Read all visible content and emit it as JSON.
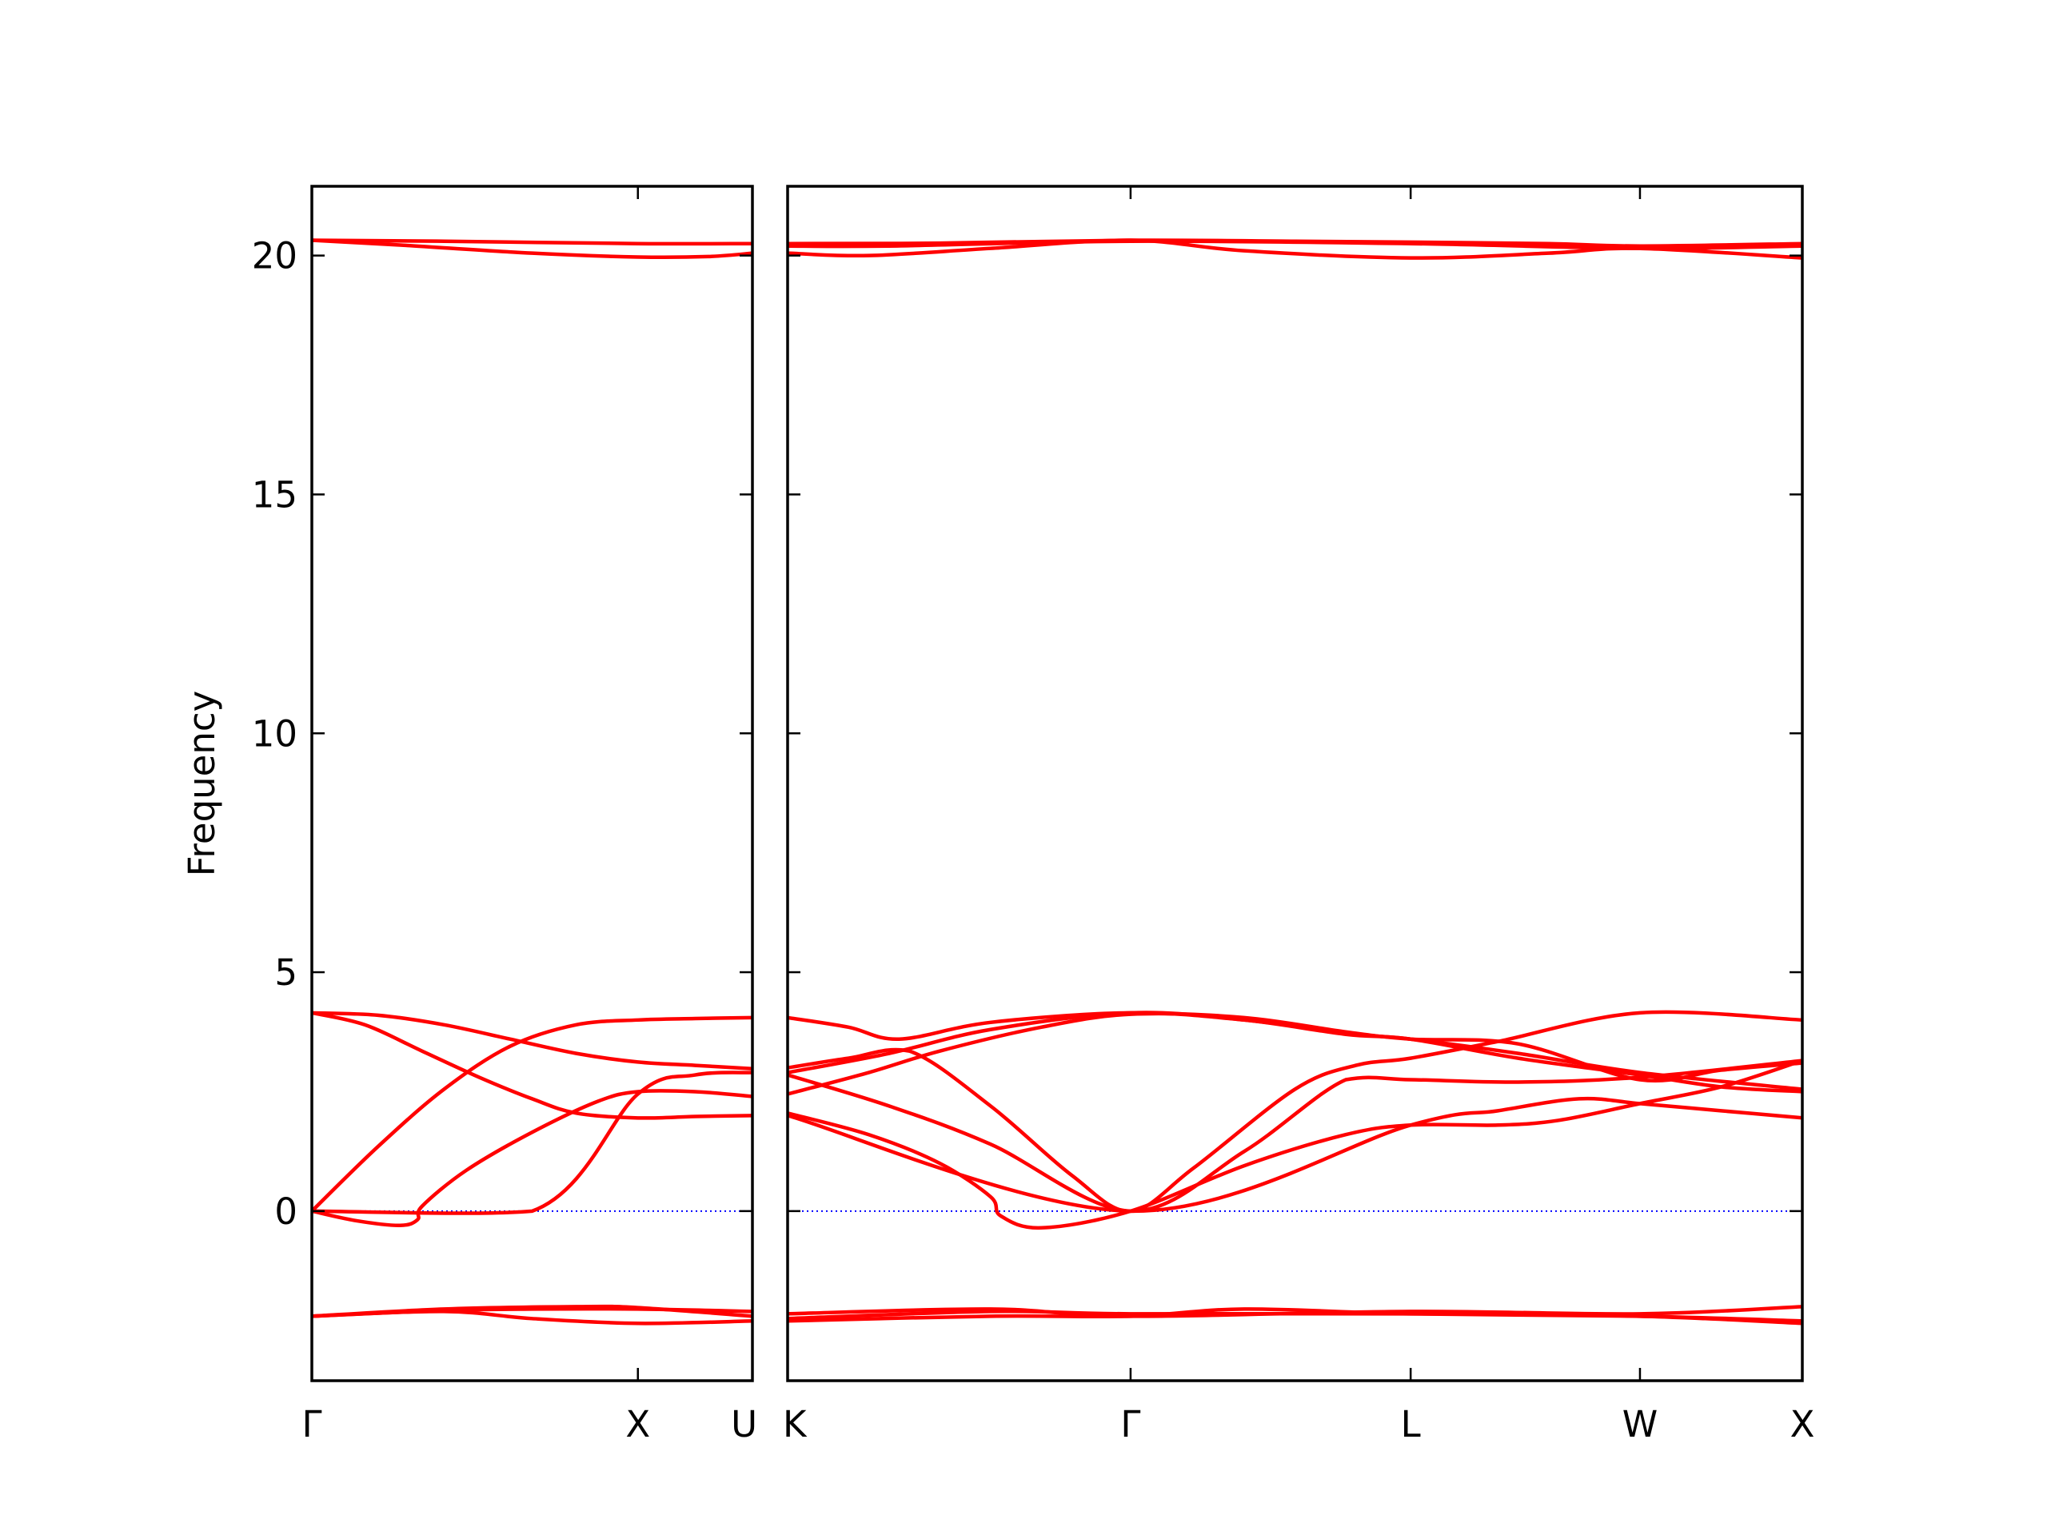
{
  "chart_data": {
    "type": "line",
    "ylabel": "Frequency",
    "ylim": [
      -3.55,
      21.45
    ],
    "yticks": [
      0,
      5,
      10,
      15,
      20
    ],
    "ytick_labels": [
      "0",
      "5",
      "10",
      "15",
      "20"
    ],
    "zero_line": {
      "value": 0,
      "color": "#0000ff",
      "style": "dotted"
    },
    "band_color": "#ff0000",
    "panels": [
      {
        "xlim": [
          0,
          1
        ],
        "ticks": [
          {
            "pos": 0,
            "label": "Γ"
          },
          {
            "pos": 0.74,
            "label": "X"
          },
          {
            "pos": 1,
            "label": "U"
          }
        ],
        "series": [
          {
            "x": [
              0,
              0.3,
              0.74,
              1
            ],
            "y": [
              20.32,
              20.3,
              20.25,
              20.25
            ]
          },
          {
            "x": [
              0,
              0.2,
              0.5,
              0.74,
              0.9,
              1
            ],
            "y": [
              20.32,
              20.22,
              20.05,
              19.97,
              19.98,
              20.05
            ]
          },
          {
            "x": [
              0,
              0.15,
              0.3,
              0.45,
              0.6,
              0.74,
              0.87,
              1
            ],
            "y": [
              4.15,
              4.1,
              3.9,
              3.6,
              3.3,
              3.12,
              3.05,
              2.98
            ]
          },
          {
            "x": [
              0,
              0.12,
              0.25,
              0.38,
              0.5,
              0.6,
              0.74,
              0.87,
              1
            ],
            "y": [
              4.15,
              3.9,
              3.35,
              2.8,
              2.35,
              2.05,
              1.95,
              1.98,
              2.0
            ]
          },
          {
            "x": [
              0,
              0.15,
              0.3,
              0.45,
              0.6,
              0.74,
              0.87,
              1
            ],
            "y": [
              0,
              1.35,
              2.55,
              3.45,
              3.9,
              4.0,
              4.03,
              4.05
            ]
          },
          {
            "x": [
              0,
              0.1,
              0.2,
              0.24,
              0.25,
              0.35,
              0.5,
              0.65,
              0.74,
              0.87,
              1
            ],
            "y": [
              0,
              -0.2,
              -0.3,
              -0.18,
              0.1,
              0.85,
              1.65,
              2.3,
              2.5,
              2.5,
              2.4
            ]
          },
          {
            "x": [
              0,
              0.5,
              0.74,
              0.87,
              1
            ],
            "y": [
              0,
              0.0,
              2.45,
              2.85,
              2.9
            ]
          },
          {
            "x": [
              0,
              0.3,
              0.5,
              0.74,
              1
            ],
            "y": [
              -2.2,
              -2.08,
              -2.05,
              -2.05,
              -2.1
            ]
          },
          {
            "x": [
              0,
              0.3,
              0.5,
              0.74,
              1
            ],
            "y": [
              -2.2,
              -2.1,
              -2.25,
              -2.35,
              -2.3
            ]
          },
          {
            "x": [
              0,
              0.3,
              0.6,
              0.74,
              1
            ],
            "y": [
              -2.2,
              -2.05,
              -2.0,
              -2.02,
              -2.2
            ]
          }
        ]
      },
      {
        "xlim": [
          0,
          1
        ],
        "ticks": [
          {
            "pos": 0,
            "label": "K"
          },
          {
            "pos": 0.338,
            "label": "Γ"
          },
          {
            "pos": 0.614,
            "label": "L"
          },
          {
            "pos": 0.84,
            "label": "W"
          },
          {
            "pos": 1,
            "label": "X"
          }
        ],
        "series": [
          {
            "x": [
              0,
              0.15,
              0.338,
              0.5,
              0.614,
              0.75,
              0.84,
              1
            ],
            "y": [
              20.25,
              20.26,
              20.32,
              20.3,
              20.28,
              20.25,
              20.2,
              20.25
            ]
          },
          {
            "x": [
              0,
              0.08,
              0.2,
              0.338,
              0.45,
              0.614,
              0.75,
              0.84,
              1
            ],
            "y": [
              20.05,
              20.0,
              20.15,
              20.32,
              20.1,
              19.95,
              20.05,
              20.15,
              19.95
            ]
          },
          {
            "x": [
              0,
              0.1,
              0.338,
              0.614,
              0.84,
              1
            ],
            "y": [
              20.2,
              20.2,
              20.3,
              20.25,
              20.15,
              20.2
            ]
          },
          {
            "x": [
              0,
              0.06,
              0.11,
              0.2,
              0.338,
              0.45,
              0.55,
              0.614,
              0.72,
              0.84,
              1
            ],
            "y": [
              4.05,
              3.85,
              3.6,
              3.95,
              4.15,
              4.0,
              3.72,
              3.6,
              3.3,
              2.9,
              2.55
            ]
          },
          {
            "x": [
              0,
              0.1,
              0.2,
              0.338,
              0.45,
              0.55,
              0.614,
              0.72,
              0.84,
              0.92,
              1
            ],
            "y": [
              2.9,
              3.3,
              3.8,
              4.15,
              4.0,
              3.7,
              3.6,
              3.2,
              2.85,
              2.6,
              2.5
            ]
          },
          {
            "x": [
              0,
              0.08,
              0.15,
              0.25,
              0.338,
              0.45,
              0.55,
              0.614,
              0.72,
              0.84,
              0.92,
              1
            ],
            "y": [
              2.45,
              2.9,
              3.35,
              3.85,
              4.12,
              4.05,
              3.75,
              3.6,
              3.5,
              2.75,
              2.95,
              3.1
            ]
          },
          {
            "x": [
              0,
              0.06,
              0.12,
              0.2,
              0.28,
              0.338,
              0.4,
              0.5,
              0.56,
              0.614,
              0.7,
              0.84,
              1
            ],
            "y": [
              3.0,
              3.2,
              3.35,
              2.2,
              0.75,
              0,
              0.9,
              2.55,
              3.05,
              3.2,
              3.55,
              4.15,
              4.0
            ]
          },
          {
            "x": [
              0,
              0.1,
              0.2,
              0.338,
              0.45,
              0.55,
              0.614,
              0.72,
              0.84,
              1
            ],
            "y": [
              2.85,
              2.2,
              1.4,
              0,
              1.25,
              2.75,
              2.75,
              2.7,
              2.8,
              3.15
            ]
          },
          {
            "x": [
              0,
              0.08,
              0.15,
              0.2,
              0.21,
              0.25,
              0.338,
              0.45,
              0.55,
              0.614,
              0.7,
              0.76,
              0.84,
              0.92,
              1
            ],
            "y": [
              2.05,
              1.6,
              1.0,
              0.3,
              -0.1,
              -0.35,
              0,
              0.95,
              1.6,
              1.8,
              1.8,
              1.9,
              2.25,
              2.6,
              3.15
            ]
          },
          {
            "x": [
              0,
              0.338,
              0.614,
              0.7,
              0.78,
              0.84,
              0.92,
              1
            ],
            "y": [
              2.0,
              0,
              1.8,
              2.1,
              2.35,
              2.25,
              2.1,
              1.95
            ]
          },
          {
            "x": [
              0,
              0.2,
              0.338,
              0.614,
              0.84,
              1
            ],
            "y": [
              -2.15,
              -2.05,
              -2.2,
              -2.1,
              -2.15,
              -2.0
            ]
          },
          {
            "x": [
              0,
              0.2,
              0.338,
              0.614,
              0.84,
              1
            ],
            "y": [
              -2.25,
              -2.1,
              -2.15,
              -2.15,
              -2.2,
              -2.35
            ]
          },
          {
            "x": [
              0,
              0.2,
              0.338,
              0.45,
              0.614,
              0.84,
              1
            ],
            "y": [
              -2.3,
              -2.2,
              -2.2,
              -2.05,
              -2.15,
              -2.2,
              -2.3
            ]
          }
        ]
      }
    ]
  }
}
